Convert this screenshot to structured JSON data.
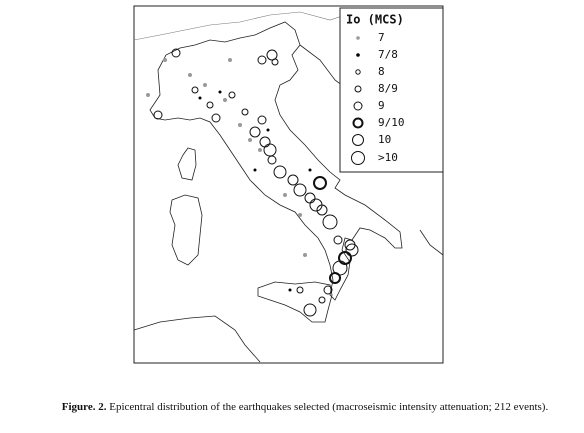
{
  "legend": {
    "title": "Io (MCS)",
    "items": [
      "7",
      "7/8",
      "8",
      "8/9",
      "9",
      "9/10",
      "10",
      ">10"
    ]
  },
  "caption": {
    "label": "Figure. 2.",
    "text": "Epicentral distribution of the earthquakes selected (macroseismic intensity attenuation; 212 events)."
  }
}
